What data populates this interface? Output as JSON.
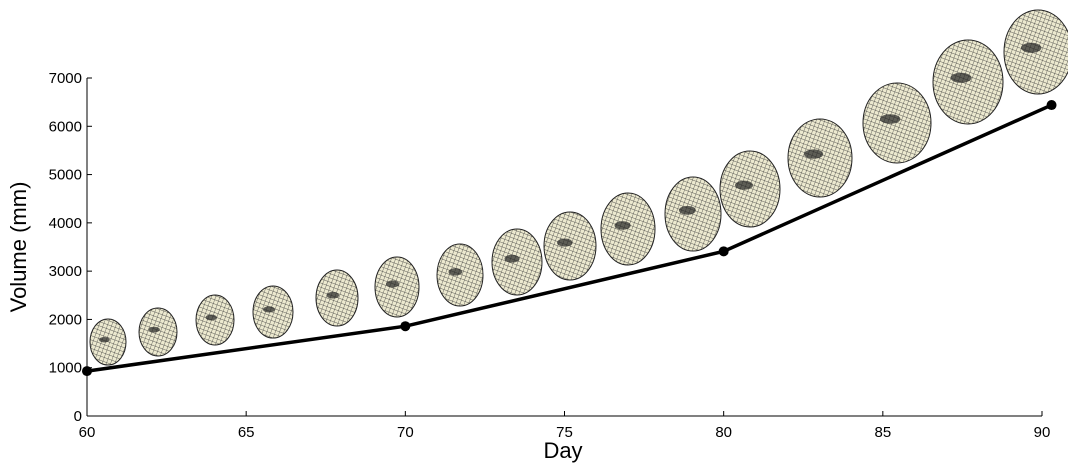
{
  "chart_data": {
    "type": "line",
    "x_label": "Day",
    "y_label": "Volume (mm)",
    "x": [
      60,
      70,
      80,
      90.3
    ],
    "values": [
      930,
      1860,
      3410,
      6440
    ],
    "color": "#000000",
    "xlim": [
      60,
      90
    ],
    "ylim": [
      0,
      7000
    ],
    "xticks": [
      60,
      65,
      70,
      75,
      80,
      85,
      90
    ],
    "yticks": [
      0,
      1000,
      2000,
      3000,
      4000,
      5000,
      6000,
      7000
    ],
    "grid": false
  }
}
